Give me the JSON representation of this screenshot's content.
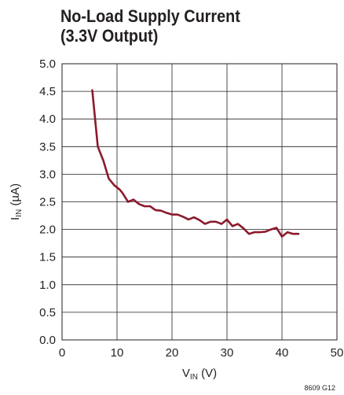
{
  "chart_data": {
    "type": "line",
    "title_line1": "No-Load Supply Current",
    "title_line2": "(3.3V Output)",
    "xlabel_main": "V",
    "xlabel_sub": "IN",
    "xlabel_unit": " (V)",
    "ylabel_main": "I",
    "ylabel_sub": "IN",
    "ylabel_unit": " (µA)",
    "xlim": [
      0,
      50
    ],
    "ylim": [
      0,
      5
    ],
    "x_ticks": [
      "0",
      "10",
      "20",
      "30",
      "40",
      "50"
    ],
    "y_ticks": [
      "0.0",
      "0.5",
      "1.0",
      "1.5",
      "2.0",
      "2.5",
      "3.0",
      "3.5",
      "4.0",
      "4.5",
      "5.0"
    ],
    "grid": true,
    "figure_id": "8609 G12",
    "line_color": "#8b1a2b",
    "series": [
      {
        "x": [
          5.5,
          6.5,
          7.5,
          8.5,
          9.5,
          10.5,
          11.0,
          12.0,
          13.0,
          14.0,
          15.0,
          16.0,
          17.0,
          18.0,
          19.0,
          20.0,
          21.0,
          22.0,
          23.0,
          24.0,
          25.0,
          26.0,
          27.0,
          28.0,
          29.0,
          30.0,
          31.0,
          32.0,
          33.0,
          34.0,
          35.0,
          36.0,
          37.0,
          38.0,
          39.0,
          40.0,
          41.0,
          42.0,
          43.0
        ],
        "y": [
          4.52,
          3.5,
          3.25,
          2.92,
          2.8,
          2.72,
          2.66,
          2.5,
          2.54,
          2.46,
          2.42,
          2.42,
          2.35,
          2.34,
          2.3,
          2.27,
          2.27,
          2.23,
          2.18,
          2.22,
          2.17,
          2.1,
          2.14,
          2.14,
          2.1,
          2.18,
          2.06,
          2.1,
          2.02,
          1.92,
          1.95,
          1.95,
          1.96,
          2.0,
          2.03,
          1.87,
          1.95,
          1.92,
          1.92
        ]
      }
    ]
  }
}
